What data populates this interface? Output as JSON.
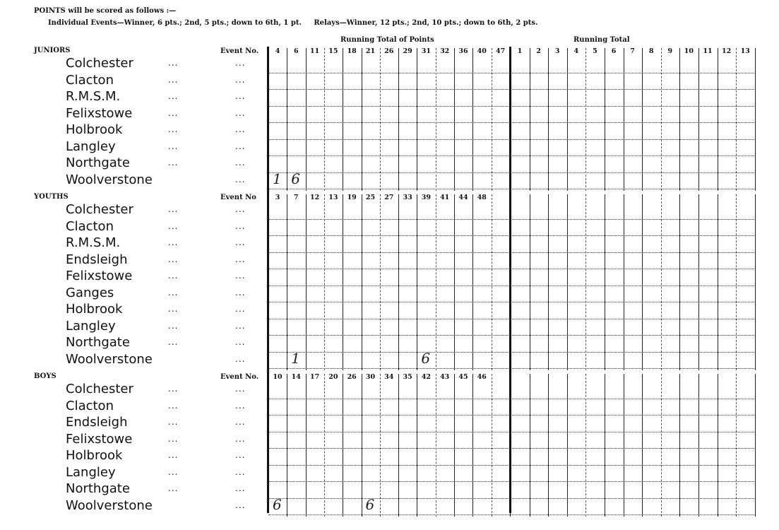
{
  "scoring": {
    "title": "POINTS will be scored as follows :—",
    "rules": "Individual Events—Winner, 6 pts.; 2nd, 5 pts.; down to 6th, 1 pt.     Relays—Winner, 12 pts.; 2nd, 10 pts.; down to 6th, 2 pts."
  },
  "column_headings": {
    "left": "Running Total of Points",
    "right": "Running Total"
  },
  "running_total_columns": [
    "1",
    "2",
    "3",
    "4",
    "5",
    "6",
    "7",
    "8",
    "9",
    "10",
    "11",
    "12",
    "13"
  ],
  "sections": [
    {
      "label": "JUNIORS",
      "event_label": "Event No.",
      "events": [
        "4",
        "6",
        "11",
        "15",
        "18",
        "21",
        "26",
        "29",
        "31",
        "32",
        "36",
        "40",
        "47"
      ],
      "teams": [
        "Colchester",
        "Clacton",
        "R.M.S.M.",
        "Felixstowe",
        "Holbrook",
        "Langley",
        "Northgate",
        "Woolverstone"
      ],
      "handwritten": [
        {
          "team": "Woolverstone",
          "event": "4",
          "value": "1"
        },
        {
          "team": "Woolverstone",
          "event": "6",
          "value": "6"
        }
      ]
    },
    {
      "label": "YOUTHS",
      "event_label": "Event No",
      "events": [
        "3",
        "7",
        "12",
        "13",
        "19",
        "25",
        "27",
        "33",
        "39",
        "41",
        "44",
        "48"
      ],
      "teams": [
        "Colchester",
        "Clacton",
        "R.M.S.M.",
        "Endsleigh",
        "Felixstowe",
        "Ganges",
        "Holbrook",
        "Langley",
        "Northgate",
        "Woolverstone"
      ],
      "handwritten": [
        {
          "team": "Woolverstone",
          "event": "7",
          "value": "1"
        },
        {
          "team": "Woolverstone",
          "event": "39",
          "value": "6"
        }
      ]
    },
    {
      "label": "BOYS",
      "event_label": "Event No.",
      "events": [
        "10",
        "14",
        "17",
        "20",
        "26",
        "30",
        "34",
        "35",
        "42",
        "43",
        "45",
        "46"
      ],
      "teams": [
        "Colchester",
        "Clacton",
        "Endsleigh",
        "Felixstowe",
        "Holbrook",
        "Langley",
        "Northgate",
        "Woolverstone"
      ],
      "handwritten": [
        {
          "team": "Woolverstone",
          "event": "10",
          "value": "6"
        },
        {
          "team": "Woolverstone",
          "event": "30",
          "value": "6"
        }
      ]
    }
  ],
  "leader_dots": "..."
}
